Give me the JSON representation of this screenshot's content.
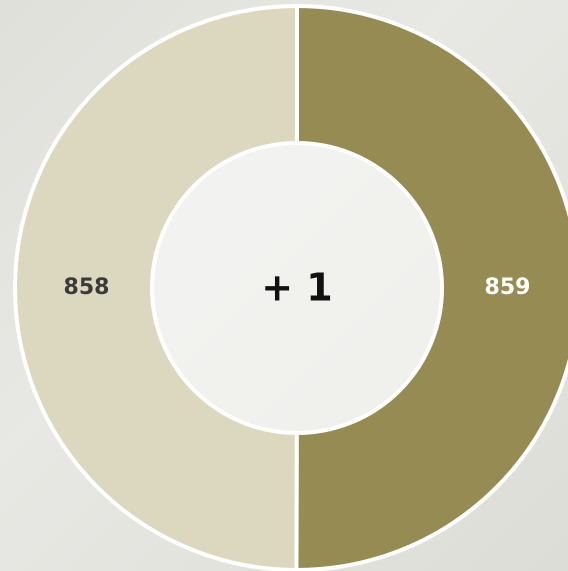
{
  "chart_data": {
    "type": "donut",
    "values": [
      859,
      858
    ],
    "colors": [
      "#968b52",
      "#dcd8bf"
    ],
    "label_colors": [
      "#ffffff",
      "#3a3a3a"
    ],
    "center_label": "+ 1"
  }
}
